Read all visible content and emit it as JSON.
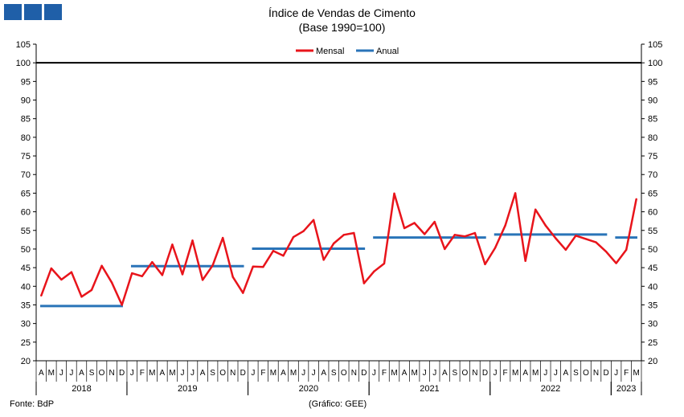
{
  "chart_data": {
    "type": "line",
    "title": "Índice de Vendas de Cimento",
    "subtitle": "(Base 1990=100)",
    "ylim": [
      20,
      105
    ],
    "y_ticks": [
      20,
      25,
      30,
      35,
      40,
      45,
      50,
      55,
      60,
      65,
      70,
      75,
      80,
      85,
      90,
      95,
      100,
      105
    ],
    "reference_line": 100,
    "legend": [
      "Mensal",
      "Anual"
    ],
    "colors": {
      "Mensal": "#e8141b",
      "Anual": "#2a74b8",
      "reference": "#000000"
    },
    "months": [
      "A",
      "M",
      "J",
      "J",
      "A",
      "S",
      "O",
      "N",
      "D",
      "J",
      "F",
      "M",
      "A",
      "M",
      "J",
      "J",
      "A",
      "S",
      "O",
      "N",
      "D",
      "J",
      "F",
      "M",
      "A",
      "M",
      "J",
      "J",
      "A",
      "S",
      "O",
      "N",
      "D",
      "J",
      "F",
      "M",
      "A",
      "M",
      "J",
      "J",
      "A",
      "S",
      "O",
      "N",
      "D",
      "J",
      "F",
      "M",
      "A",
      "M",
      "J",
      "J",
      "A",
      "S",
      "O",
      "N",
      "D",
      "J",
      "F",
      "M"
    ],
    "years": [
      {
        "label": "2018",
        "start": 0,
        "end": 8
      },
      {
        "label": "2019",
        "start": 9,
        "end": 20
      },
      {
        "label": "2020",
        "start": 21,
        "end": 32
      },
      {
        "label": "2021",
        "start": 33,
        "end": 44
      },
      {
        "label": "2022",
        "start": 45,
        "end": 56
      },
      {
        "label": "2023",
        "start": 57,
        "end": 59
      }
    ],
    "series": [
      {
        "name": "Mensal",
        "values": [
          37.5,
          44.8,
          41.8,
          43.8,
          37.2,
          39.0,
          45.5,
          41.0,
          35.0,
          43.5,
          42.7,
          46.5,
          43.0,
          51.2,
          43.2,
          52.3,
          41.7,
          45.6,
          53.0,
          42.5,
          38.2,
          45.3,
          45.2,
          49.5,
          48.2,
          53.2,
          54.8,
          57.8,
          47.1,
          51.5,
          53.8,
          54.3,
          40.8,
          44.0,
          46.1,
          64.9,
          55.6,
          57.0,
          54.0,
          57.3,
          50.0,
          53.8,
          53.4,
          54.3,
          45.9,
          50.3,
          56.3,
          65.0,
          46.8,
          60.6,
          56.3,
          52.9,
          49.8,
          53.6,
          52.7,
          51.8,
          49.3,
          46.2,
          49.8,
          63.4
        ]
      },
      {
        "name": "Anual",
        "segments": [
          {
            "start": 0,
            "end": 8,
            "value": 34.7
          },
          {
            "start": 9,
            "end": 20,
            "value": 45.4
          },
          {
            "start": 21,
            "end": 32,
            "value": 50.1
          },
          {
            "start": 33,
            "end": 44,
            "value": 53.1
          },
          {
            "start": 45,
            "end": 56,
            "value": 53.9
          },
          {
            "start": 57,
            "end": 59,
            "value": 53.1
          }
        ]
      }
    ]
  },
  "footer": {
    "source": "Fonte: BdP",
    "credit": "(Gráfico: GEE)"
  }
}
